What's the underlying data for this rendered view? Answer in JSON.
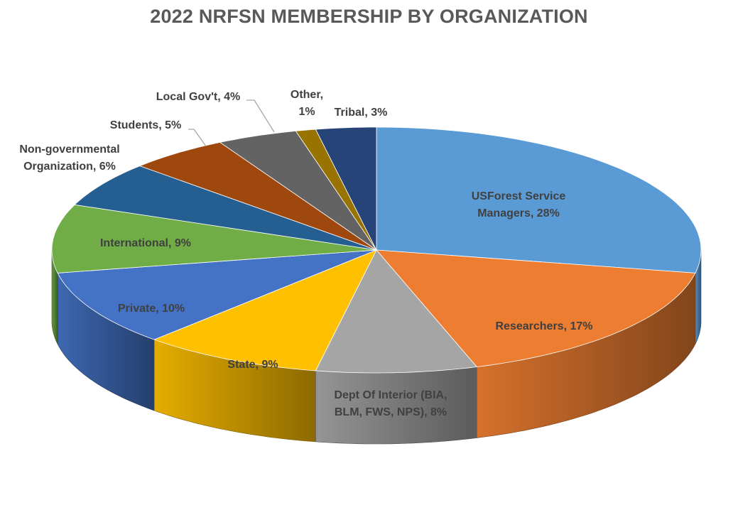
{
  "chart_data": {
    "type": "pie",
    "title": "2022 NRFSN MEMBERSHIP BY ORGANIZATION",
    "style": "3d-exploded",
    "slices": [
      {
        "name": "USForest Service Managers",
        "value": 28,
        "color": "#5B9BD5",
        "label_lines": [
          "USForest Service",
          "Managers, 28%"
        ]
      },
      {
        "name": "Researchers",
        "value": 17,
        "color": "#ED7D31",
        "label_lines": [
          "Researchers, 17%"
        ]
      },
      {
        "name": "Dept Of Interior  (BIA, BLM, FWS, NPS)",
        "value": 8,
        "color": "#A5A5A5",
        "label_lines": [
          "Dept Of Interior  (BIA,",
          "BLM, FWS, NPS), 8%"
        ]
      },
      {
        "name": "State",
        "value": 9,
        "color": "#FFC000",
        "label_lines": [
          "State, 9%"
        ]
      },
      {
        "name": "Private",
        "value": 10,
        "color": "#4472C4",
        "label_lines": [
          "Private, 10%"
        ]
      },
      {
        "name": "International",
        "value": 9,
        "color": "#70AD47",
        "label_lines": [
          "International, 9%"
        ]
      },
      {
        "name": "Non-governmental Organization",
        "value": 6,
        "color": "#255E91",
        "label_lines": [
          "Non-governmental",
          "Organization, 6%"
        ]
      },
      {
        "name": "Students",
        "value": 5,
        "color": "#9E480E",
        "label_lines": [
          "Students, 5%"
        ]
      },
      {
        "name": "Local Gov't",
        "value": 4,
        "color": "#636363",
        "label_lines": [
          "Local Gov't, 4%"
        ]
      },
      {
        "name": "Other",
        "value": 1,
        "color": "#997300",
        "label_lines": [
          "Other,",
          "1%"
        ]
      },
      {
        "name": "Tribal",
        "value": 3,
        "color": "#264478",
        "label_lines": [
          "Tribal, 3%"
        ]
      }
    ]
  }
}
